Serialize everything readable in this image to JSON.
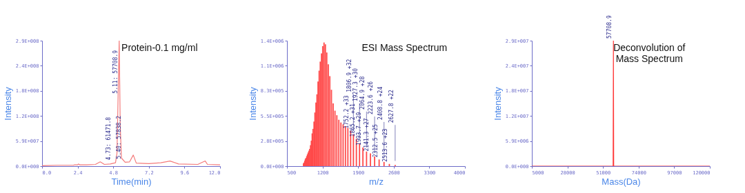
{
  "chart_data": [
    {
      "type": "line",
      "title": "Protein-0.1 mg/ml",
      "xlabel": "Time(min)",
      "ylabel": "Intensity",
      "line_style": "solid",
      "xlim": [
        0,
        12
      ],
      "xticks": [
        {
          "value": 0,
          "label": "0.0"
        },
        2.4,
        4.8,
        7.2,
        9.6,
        {
          "value": 12,
          "label": "12.0"
        }
      ],
      "ylim": [
        0,
        294000000
      ],
      "yticks": [
        {
          "value": 0,
          "label": "0.0E+000"
        },
        {
          "value": 58800000,
          "label": "5.9E+007"
        },
        {
          "value": 117600000,
          "label": "1.2E+008"
        },
        {
          "value": 176400000,
          "label": "1.8E+008"
        },
        {
          "value": 235200000,
          "label": "2.4E+008"
        },
        {
          "value": 294000000,
          "label": "2.9E+008"
        }
      ],
      "series": [
        {
          "color": "#f47a7a",
          "x": [
            0,
            1.0,
            2.1,
            2.2,
            2.4,
            2.45,
            2.55,
            3.0,
            3.6,
            3.92,
            4.2,
            4.6,
            4.95,
            5.05,
            5.2,
            5.27,
            5.35,
            5.6,
            5.9,
            6.15,
            6.35,
            7.2,
            8.0,
            8.63,
            9.2,
            10.5,
            11.0,
            11.15,
            12.0
          ],
          "values": [
            1000000,
            2000000,
            2000000,
            3000000,
            3000000,
            5000000,
            3000000,
            3000000,
            4000000,
            10000000,
            4000000,
            5000000,
            8000000,
            30000000,
            294000000,
            94000000,
            19000000,
            9000000,
            10000000,
            26000000,
            7000000,
            6000000,
            8000000,
            12000000,
            5000000,
            4000000,
            12000000,
            4000000,
            3000000
          ]
        }
      ],
      "annotations": [
        {
          "text": "5.11: 57708.9",
          "x": 5.2,
          "y": 294000000
        },
        {
          "text": "4.73: 61471.8",
          "x": 4.73,
          "y": 9000000
        },
        {
          "text": "5.40: 57838.2",
          "x": 5.45,
          "y": 12000000
        }
      ]
    },
    {
      "type": "bar",
      "title": "ESI Mass Spectrum",
      "xlabel": "m/z",
      "ylabel": "Intensity",
      "xlim": [
        500,
        4000
      ],
      "xticks": [
        500,
        1200,
        1900,
        2600,
        3300,
        4000
      ],
      "ylim": [
        0,
        1380000
      ],
      "yticks": [
        {
          "value": 0,
          "label": "0.0E+000"
        },
        {
          "value": 276000,
          "label": "2.8E+005"
        },
        {
          "value": 552000,
          "label": "5.5E+005"
        },
        {
          "value": 828000,
          "label": "8.3E+005"
        },
        {
          "value": 1104000,
          "label": "1.1E+006"
        },
        {
          "value": 1380000,
          "label": "1.4E+006"
        }
      ],
      "series": [
        {
          "color": "#ff4a4a",
          "x": [
            825,
            837,
            850,
            862,
            875,
            889,
            903,
            917,
            932,
            947,
            963,
            979,
            996,
            1013,
            1032,
            1050,
            1070,
            1090,
            1111,
            1133,
            1155,
            1179,
            1203,
            1229,
            1256,
            1283,
            1313,
            1343,
            1375,
            1408,
            1444,
            1481,
            1520,
            1561,
            1604,
            1650,
            1698,
            1752.2,
            1806.9,
            1865.2,
            1927.3,
            1993.7,
            2064.9,
            2141.3,
            2223.6,
            2312.5,
            2408.8,
            2513.6,
            2627.8
          ],
          "values": [
            30000,
            40000,
            60000,
            80000,
            90000,
            110000,
            130000,
            150000,
            170000,
            190000,
            230000,
            280000,
            360000,
            410000,
            490000,
            590000,
            700000,
            790000,
            930000,
            1050000,
            1150000,
            1240000,
            1320000,
            1360000,
            1340000,
            1250000,
            1120000,
            990000,
            840000,
            690000,
            610000,
            560000,
            510000,
            480000,
            460000,
            440000,
            420000,
            390000,
            350000,
            300000,
            250000,
            205000,
            160000,
            140000,
            106000,
            73000,
            46000,
            24000,
            13000
          ]
        }
      ],
      "annotations": [
        {
          "text": "1752.2 +33",
          "x": 1752.2,
          "y": 390000
        },
        {
          "text": "1806.9 +32",
          "x": 1806.9,
          "y": 350000
        },
        {
          "text": "1865.2 +31",
          "x": 1865.2,
          "y": 300000
        },
        {
          "text": "1927.3 +30",
          "x": 1927.3,
          "y": 250000
        },
        {
          "text": "1993.7 +29",
          "x": 1993.7,
          "y": 205000
        },
        {
          "text": "2064.9 +28",
          "x": 2064.9,
          "y": 160000
        },
        {
          "text": "2141.3 +27",
          "x": 2141.3,
          "y": 140000
        },
        {
          "text": "2223.6 +26",
          "x": 2223.6,
          "y": 106000
        },
        {
          "text": "2312.5 +25",
          "x": 2312.5,
          "y": 73000
        },
        {
          "text": "2408.8 +24",
          "x": 2408.8,
          "y": 46000
        },
        {
          "text": "2513.6 +23",
          "x": 2513.6,
          "y": 24000
        },
        {
          "text": "2627.8 +22",
          "x": 2627.8,
          "y": 13000
        }
      ]
    },
    {
      "type": "line",
      "title": "Deconvolution of\nMass Spectrum",
      "xlabel": "Mass(Da)",
      "ylabel": "Intensity",
      "line_style": "solid",
      "xlim": [
        5000,
        120000
      ],
      "xticks": [
        5000,
        28000,
        51000,
        74000,
        97000,
        120000
      ],
      "ylim": [
        0,
        29400000
      ],
      "yticks": [
        {
          "value": 0,
          "label": "0.0E+000"
        },
        {
          "value": 5880000,
          "label": "5.9E+006"
        },
        {
          "value": 11760000,
          "label": "1.2E+007"
        },
        {
          "value": 17640000,
          "label": "1.8E+007"
        },
        {
          "value": 23520000,
          "label": "2.4E+007"
        },
        {
          "value": 29400000,
          "label": "2.9E+007"
        }
      ],
      "series": [
        {
          "color": "#ff3a3a",
          "x": [
            5000,
            57500,
            57708.9,
            57900,
            120000
          ],
          "values": [
            0,
            0,
            29400000,
            0,
            0
          ]
        }
      ],
      "annotations": [
        {
          "text": "57708.9",
          "x": 57708.9,
          "y": 29400000
        }
      ]
    }
  ]
}
